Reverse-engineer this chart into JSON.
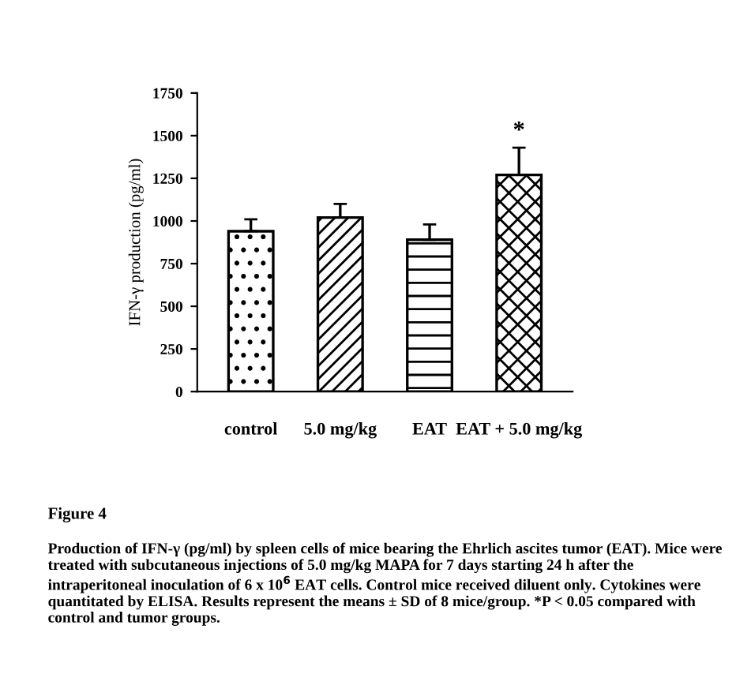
{
  "chart_data": {
    "type": "bar",
    "ylabel": "IFN-γ production (pg/ml)",
    "categories": [
      "control",
      "5.0 mg/kg",
      "EAT",
      "EAT + 5.0 mg/kg"
    ],
    "values": [
      940,
      1020,
      890,
      1270
    ],
    "errors": [
      [
        940,
        1010
      ],
      [
        1020,
        1100
      ],
      [
        890,
        980
      ],
      [
        1270,
        1430
      ]
    ],
    "ylim": [
      0,
      1750
    ],
    "yticks": [
      0,
      250,
      500,
      750,
      1000,
      1250,
      1500,
      1750
    ],
    "annotations": [
      "*",
      "Figure 4",
      "Production of IFN-γ (pg/ml) by spleen cells of mice bearing the Ehrlich ascites tumor (EAT). Mice were treated with subcutaneous injections of 5.0 mg/kg MAPA for 7 days starting 24 h after the intraperitoneal inoculation of 6 x 10$^{6}$ EAT cells. Control mice received diluent only. Cytokines were quantitated by ELISA. Results represent the means ± SD of 8 mice/group. *P < 0.05 compared with control and tumor groups."
    ]
  }
}
